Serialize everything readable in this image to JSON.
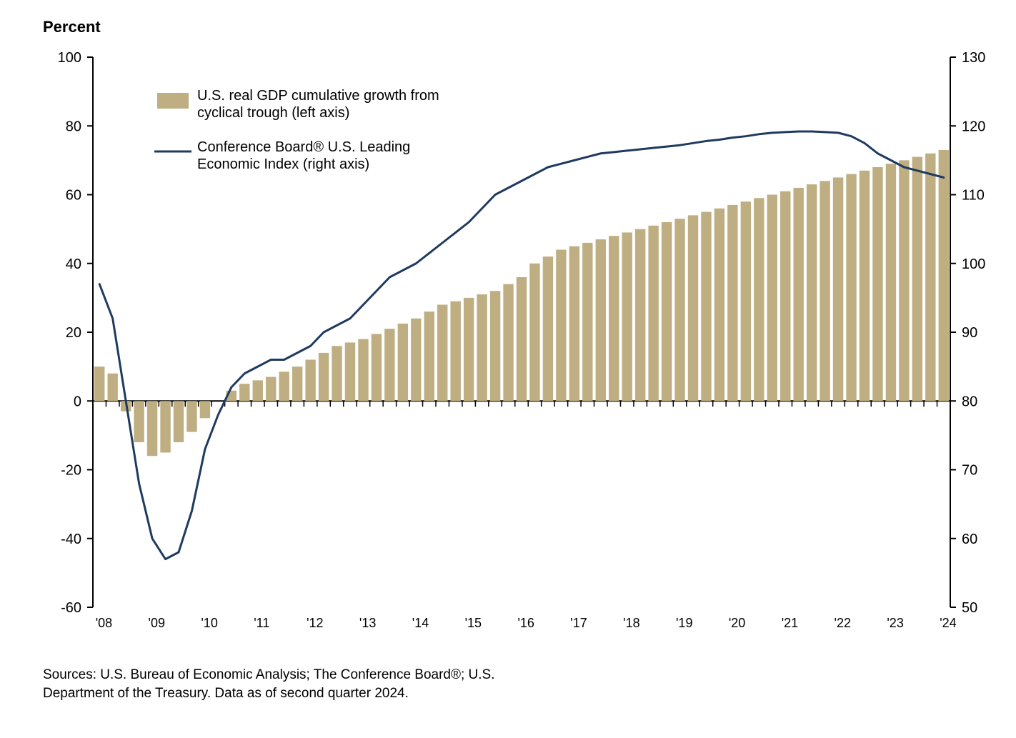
{
  "chart": {
    "type": "bar+line",
    "background_color": "#ffffff",
    "yaxis_title": "Percent",
    "yaxis_title_fontsize": 22,
    "ylim": [
      -60,
      100
    ],
    "ytick_step": 20,
    "ytick_labels": [
      "-60",
      "-40",
      "-20",
      "0",
      "20",
      "40",
      "60",
      "80",
      "100"
    ],
    "yaxis_label_fontsize": 20,
    "bar_color": "#beae81",
    "line_color": "#1f3a5f",
    "line_width": 3,
    "axis_color": "#000000",
    "tick_color": "#000000",
    "tick_length": 8,
    "legend": {
      "items": [
        {
          "type": "bar",
          "label_lines": [
            "U.S. real GDP cumulative growth from",
            "cyclical trough (left axis)"
          ]
        },
        {
          "type": "line",
          "label_lines": [
            "Conference Board® U.S. Leading",
            "Economic Index (right axis)"
          ]
        }
      ],
      "fontsize": 20
    },
    "right_axis": {
      "ylim": [
        50,
        130
      ],
      "ytick_step": 10,
      "ytick_labels": [
        "50",
        "60",
        "70",
        "80",
        "90",
        "100",
        "110",
        "120",
        "130"
      ],
      "fontsize": 20
    },
    "x_categories": [
      "'08",
      "",
      "",
      "",
      "'09",
      "",
      "",
      "",
      "'10",
      "",
      "",
      "",
      "'11",
      "",
      "",
      "",
      "'12",
      "",
      "",
      "",
      "'13",
      "",
      "",
      "",
      "'14",
      "",
      "",
      "",
      "'15",
      "",
      "",
      "",
      "'16",
      "",
      "",
      "",
      "'17",
      "",
      "",
      "",
      "'18",
      "",
      "",
      "",
      "'19",
      "",
      "",
      "",
      "'20",
      "",
      "",
      "",
      "'21",
      "",
      "",
      "",
      "'22",
      "",
      "",
      "",
      "'23",
      "",
      "",
      "",
      "'24"
    ],
    "x_tick_labels": [
      "'08",
      "'09",
      "'10",
      "'11",
      "'12",
      "'13",
      "'14",
      "'15",
      "'16",
      "'17",
      "'18",
      "'19",
      "'20",
      "'21",
      "'22",
      "'23",
      "'24"
    ],
    "x_label_fontsize": 18,
    "bar_values": [
      10,
      8,
      -3,
      -12,
      -16,
      -15,
      -12,
      -9,
      -5,
      0,
      3,
      5,
      6,
      7,
      8.5,
      10,
      12,
      14,
      16,
      17,
      18,
      19.5,
      21,
      22.5,
      24,
      26,
      28,
      29,
      30,
      31,
      32,
      34,
      36,
      40,
      42,
      44,
      45,
      46,
      47,
      48,
      49,
      50,
      51,
      52,
      53,
      54,
      55,
      56,
      57,
      58,
      59,
      60,
      61,
      62,
      63,
      64,
      65,
      66,
      67,
      68,
      69,
      70,
      71,
      72,
      73
    ],
    "line_values": [
      97,
      92,
      80,
      68,
      60,
      57,
      58,
      64,
      73,
      78,
      82,
      84,
      85,
      86,
      86,
      87,
      88,
      90,
      91,
      92,
      94,
      96,
      98,
      99,
      100,
      101.5,
      103,
      104.5,
      106,
      108,
      110,
      111,
      112,
      113,
      114,
      114.5,
      115,
      115.5,
      116,
      116.2,
      116.4,
      116.6,
      116.8,
      117,
      117.2,
      117.5,
      117.8,
      118,
      118.3,
      118.5,
      118.8,
      119,
      119.1,
      119.2,
      119.2,
      119.1,
      119,
      118.5,
      117.5,
      116,
      115,
      114,
      113.5,
      113,
      112.5
    ],
    "source_lines": [
      "Sources: U.S. Bureau of Economic Analysis; The Conference Board®; U.S.",
      "Department of the Treasury. Data as of second quarter 2024."
    ],
    "source_fontsize": 19
  }
}
